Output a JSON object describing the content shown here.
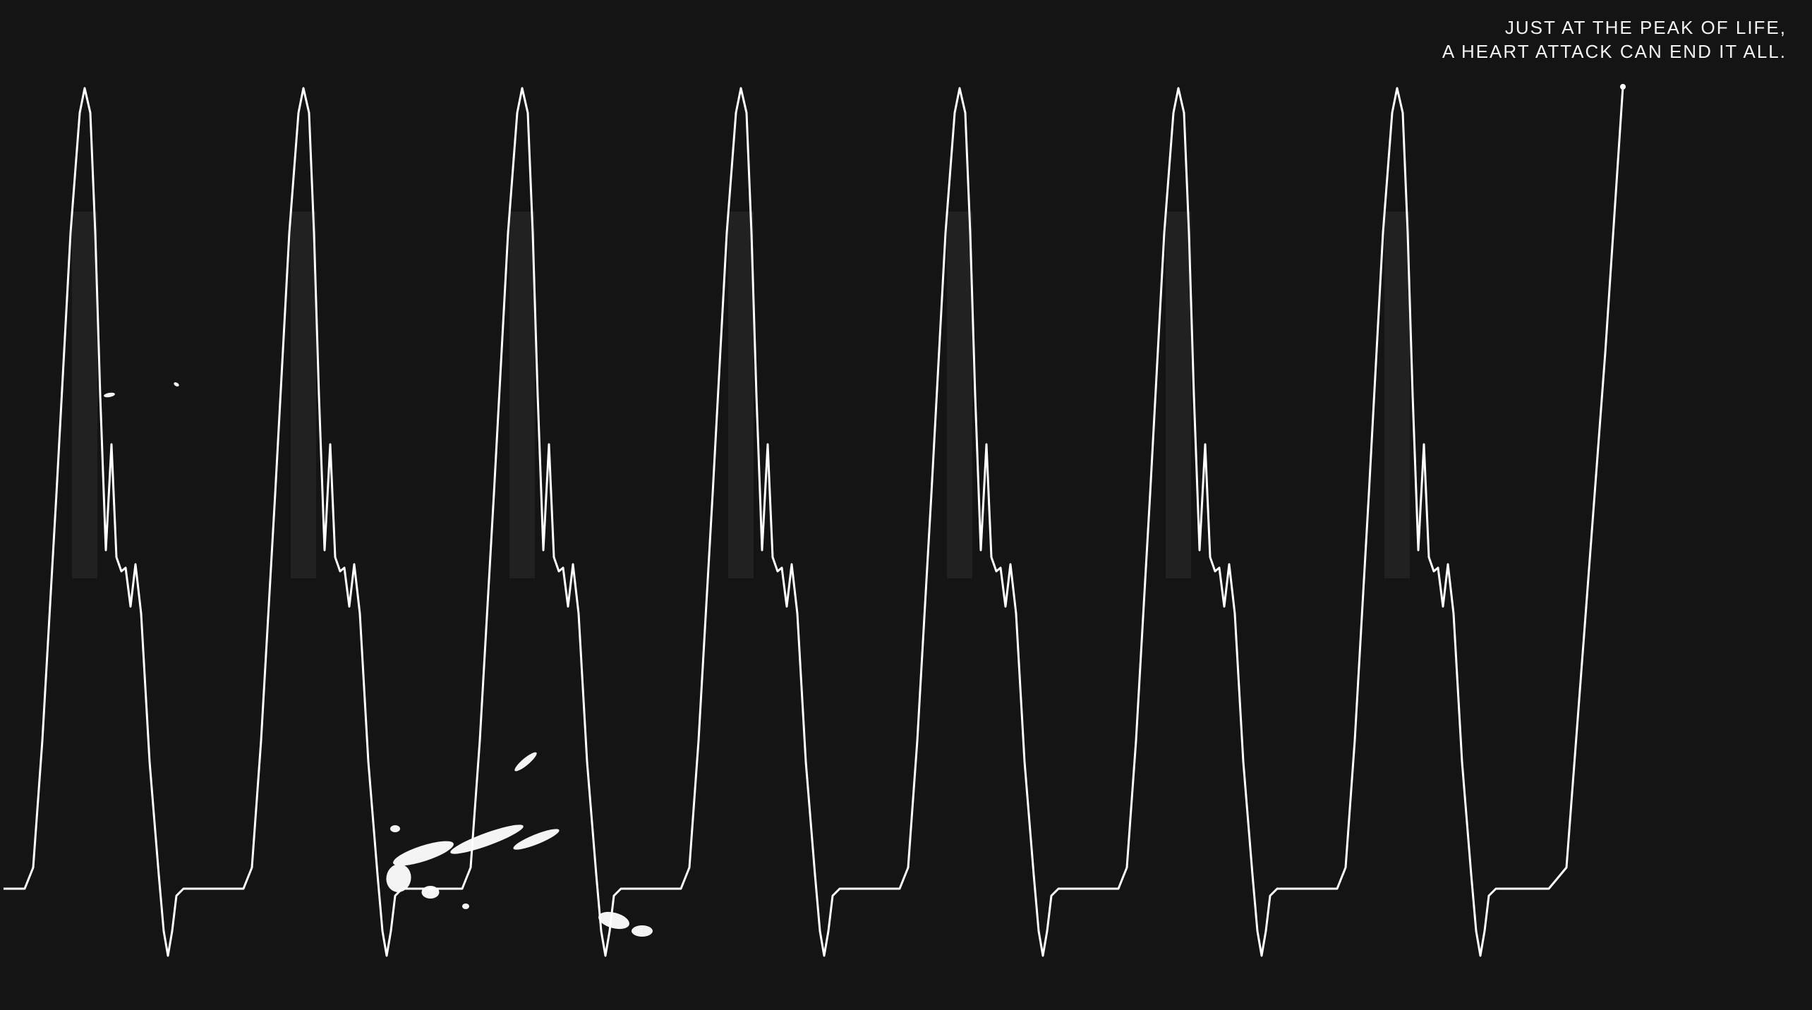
{
  "headline": {
    "line1": "JUST AT THE PEAK OF LIFE,",
    "line2": "A HEART ATTACK CAN END IT ALL."
  },
  "trace": {
    "color": "#ffffff",
    "beat_count": 7,
    "final_upstroke": true
  },
  "colors": {
    "background": "#141414",
    "text": "#f2f2f2"
  }
}
